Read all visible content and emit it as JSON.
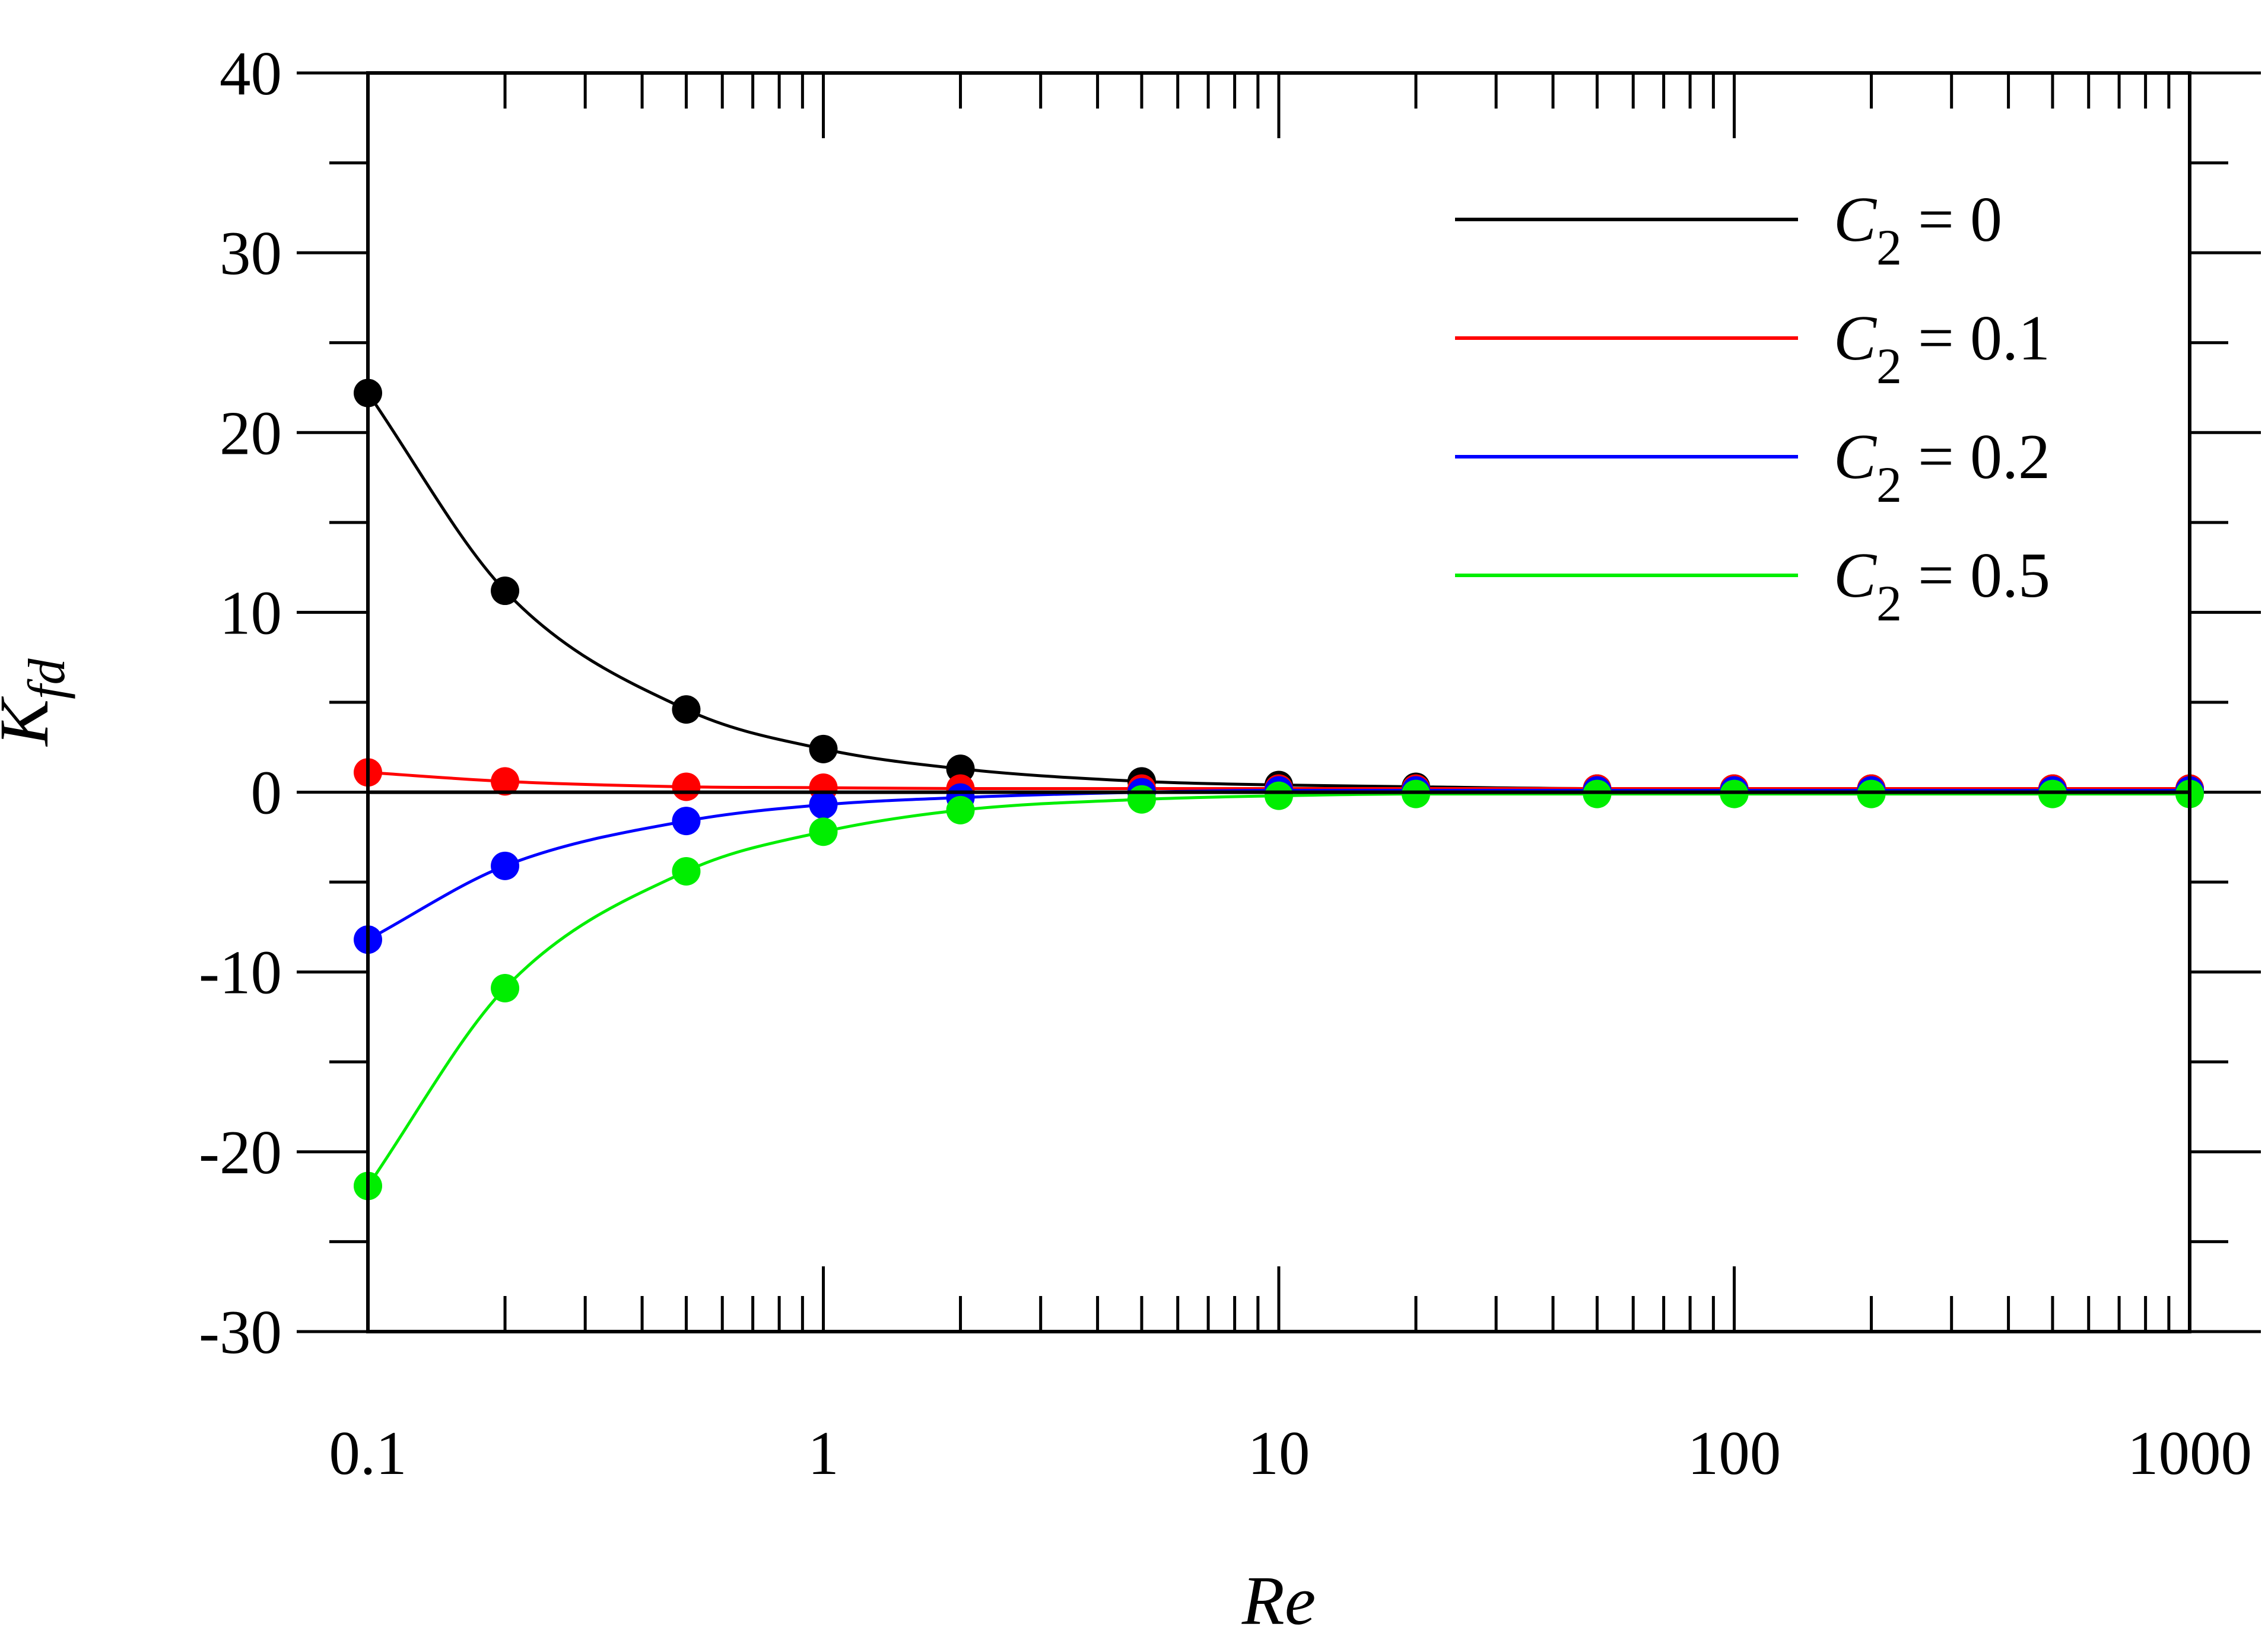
{
  "chart_data": {
    "type": "line",
    "title": "",
    "xlabel": "Re",
    "ylabel": "K_fd",
    "ylabel_main": "K",
    "ylabel_sub": "fd",
    "x_scale": "log",
    "xlim": [
      0.1,
      1000
    ],
    "ylim": [
      -30,
      40
    ],
    "x_tick_labels": [
      "0.1",
      "1",
      "10",
      "100",
      "1000"
    ],
    "y_tick_labels": [
      "-30",
      "-20",
      "-10",
      "0",
      "10",
      "20",
      "30",
      "40"
    ],
    "grid": false,
    "legend_position": "top-right",
    "x": [
      0.1,
      0.2,
      0.5,
      1,
      2,
      5,
      10,
      20,
      50,
      100,
      200,
      500,
      1000
    ],
    "series": [
      {
        "name": "C2 = 0",
        "legend_prefix": "C",
        "legend_sub": "2",
        "legend_suffix": " = 0",
        "color": "#000000",
        "values": [
          22.2,
          11.2,
          4.6,
          2.4,
          1.3,
          0.6,
          0.4,
          0.3,
          0.2,
          0.2,
          0.2,
          0.2,
          0.2
        ]
      },
      {
        "name": "C2 = 0.1",
        "legend_prefix": "C",
        "legend_sub": "2",
        "legend_suffix": " = 0.1",
        "color": "#ff0000",
        "values": [
          1.1,
          0.6,
          0.3,
          0.25,
          0.2,
          0.2,
          0.2,
          0.2,
          0.2,
          0.2,
          0.2,
          0.2,
          0.2
        ]
      },
      {
        "name": "C2 = 0.2",
        "legend_prefix": "C",
        "legend_sub": "2",
        "legend_suffix": " = 0.2",
        "color": "#0000ff",
        "values": [
          -8.2,
          -4.1,
          -1.6,
          -0.7,
          -0.3,
          0.0,
          0.1,
          0.1,
          0.1,
          0.1,
          0.1,
          0.1,
          0.1
        ]
      },
      {
        "name": "C2 = 0.5",
        "legend_prefix": "C",
        "legend_sub": "2",
        "legend_suffix": " = 0.5",
        "color": "#00ee00",
        "values": [
          -21.9,
          -10.9,
          -4.4,
          -2.2,
          -1.0,
          -0.4,
          -0.2,
          -0.1,
          -0.1,
          -0.1,
          -0.1,
          -0.1,
          -0.1
        ]
      }
    ]
  }
}
